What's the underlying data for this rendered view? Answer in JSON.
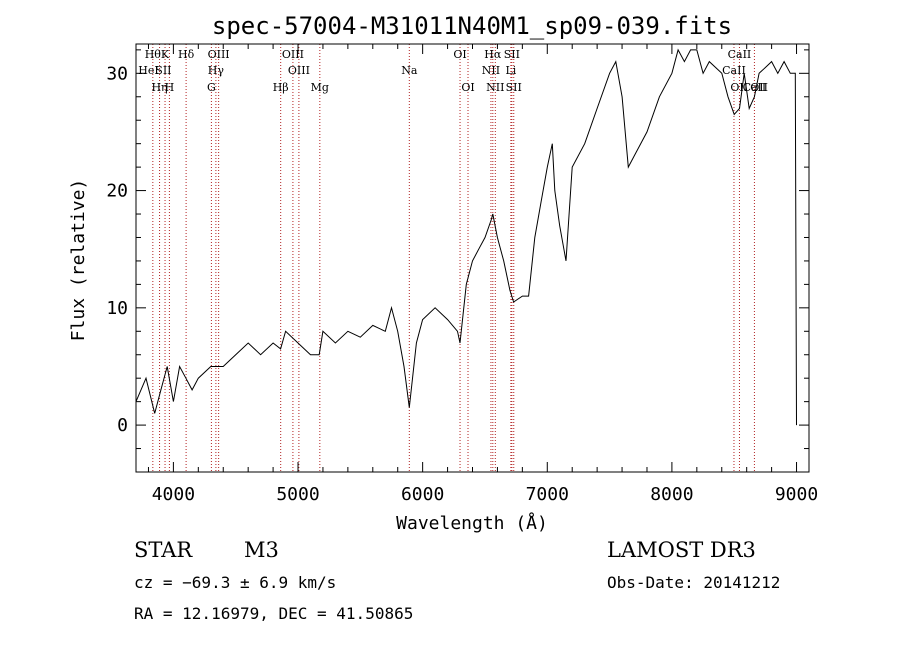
{
  "chart_data": {
    "type": "line",
    "title": "spec-57004-M31011N40M1_sp09-039.fits",
    "xlabel": "Wavelength (Å)",
    "ylabel": "Flux (relative)",
    "xlim": [
      3700,
      9100
    ],
    "ylim": [
      -4,
      32.5
    ],
    "xticks": [
      4000,
      5000,
      6000,
      7000,
      8000,
      9000
    ],
    "yticks": [
      0,
      10,
      20,
      30
    ],
    "line_color": "#000000",
    "marker_color": "#b22222",
    "spectrum": {
      "x": [
        3700,
        3780,
        3850,
        3900,
        3950,
        4000,
        4050,
        4100,
        4150,
        4200,
        4300,
        4400,
        4500,
        4600,
        4700,
        4800,
        4860,
        4900,
        5000,
        5100,
        5170,
        5200,
        5300,
        5400,
        5500,
        5600,
        5700,
        5750,
        5800,
        5850,
        5893,
        5950,
        6000,
        6100,
        6200,
        6280,
        6300,
        6350,
        6400,
        6450,
        6500,
        6550,
        6563,
        6600,
        6650,
        6700,
        6730,
        6800,
        6850,
        6900,
        6950,
        7000,
        7040,
        7060,
        7100,
        7150,
        7200,
        7300,
        7400,
        7500,
        7550,
        7600,
        7650,
        7700,
        7800,
        7900,
        8000,
        8050,
        8100,
        8150,
        8200,
        8250,
        8300,
        8400,
        8450,
        8500,
        8542,
        8580,
        8620,
        8662,
        8700,
        8750,
        8800,
        8850,
        8900,
        8950,
        8990,
        9000
      ],
      "y": [
        2,
        4,
        1,
        3,
        5,
        2,
        5,
        4,
        3,
        4,
        5,
        5,
        6,
        7,
        6,
        7,
        6.5,
        8,
        7,
        6,
        6,
        8,
        7,
        8,
        7.5,
        8.5,
        8,
        10,
        8,
        5,
        1.5,
        7,
        9,
        10,
        9,
        8,
        7,
        12,
        14,
        15,
        16,
        17.5,
        18,
        16,
        14,
        11.5,
        10.5,
        11,
        11,
        16,
        19,
        22,
        24,
        20,
        17,
        14,
        22,
        24,
        27,
        30,
        31,
        28,
        22,
        23,
        25,
        28,
        30,
        32,
        31,
        32,
        32,
        30,
        31,
        30,
        28,
        26.5,
        27,
        30,
        27,
        28,
        30,
        30.5,
        31,
        30,
        31,
        30,
        30,
        0
      ]
    },
    "line_markers": [
      {
        "wavelength": 3835,
        "label": "Hθ",
        "row": 0
      },
      {
        "wavelength": 3889,
        "label": "Hη",
        "row": 2
      },
      {
        "wavelength": 3933,
        "label": "K",
        "row": 0
      },
      {
        "wavelength": 3968,
        "label": "H",
        "row": 2
      },
      {
        "wavelength": 4102,
        "label": "Hδ",
        "row": 0
      },
      {
        "wavelength": 4305,
        "label": "G",
        "row": 2
      },
      {
        "wavelength": 4341,
        "label": "Hγ",
        "row": 1
      },
      {
        "wavelength": 4363,
        "label": "OIII",
        "row": 0
      },
      {
        "wavelength": 4861,
        "label": "Hβ",
        "row": 2
      },
      {
        "wavelength": 4959,
        "label": "OIII",
        "row": 0
      },
      {
        "wavelength": 5007,
        "label": "OIII",
        "row": 1
      },
      {
        "wavelength": 5175,
        "label": "Mg",
        "row": 2
      },
      {
        "wavelength": 5893,
        "label": "Na",
        "row": 1
      },
      {
        "wavelength": 6300,
        "label": "OI",
        "row": 0
      },
      {
        "wavelength": 6364,
        "label": "OI",
        "row": 2
      },
      {
        "wavelength": 6548,
        "label": "NII",
        "row": 1
      },
      {
        "wavelength": 6563,
        "label": "Hα",
        "row": 0
      },
      {
        "wavelength": 6583,
        "label": "NII",
        "row": 2
      },
      {
        "wavelength": 6708,
        "label": "Li",
        "row": 1
      },
      {
        "wavelength": 6716,
        "label": "SII",
        "row": 0
      },
      {
        "wavelength": 6731,
        "label": "SII",
        "row": 2
      },
      {
        "wavelength": 8498,
        "label": "CaII",
        "row": 1
      },
      {
        "wavelength": 8542,
        "label": "CaII",
        "row": 0
      },
      {
        "wavelength": 8662,
        "label": "CaII",
        "row": 2
      }
    ],
    "extra_labels": [
      {
        "text": "HeI",
        "row": 1
      },
      {
        "text": "SII",
        "row": 1
      },
      {
        "text": "OII",
        "row": 2
      },
      {
        "text": "OII",
        "row": 2
      }
    ]
  },
  "info": {
    "class": "STAR",
    "subclass": "M3",
    "survey": "LAMOST DR3",
    "cz": "cz = −69.3 ± 6.9 km/s",
    "obs_date": "Obs-Date: 20141212",
    "coords": "RA =  12.16979, DEC =  41.50865"
  }
}
